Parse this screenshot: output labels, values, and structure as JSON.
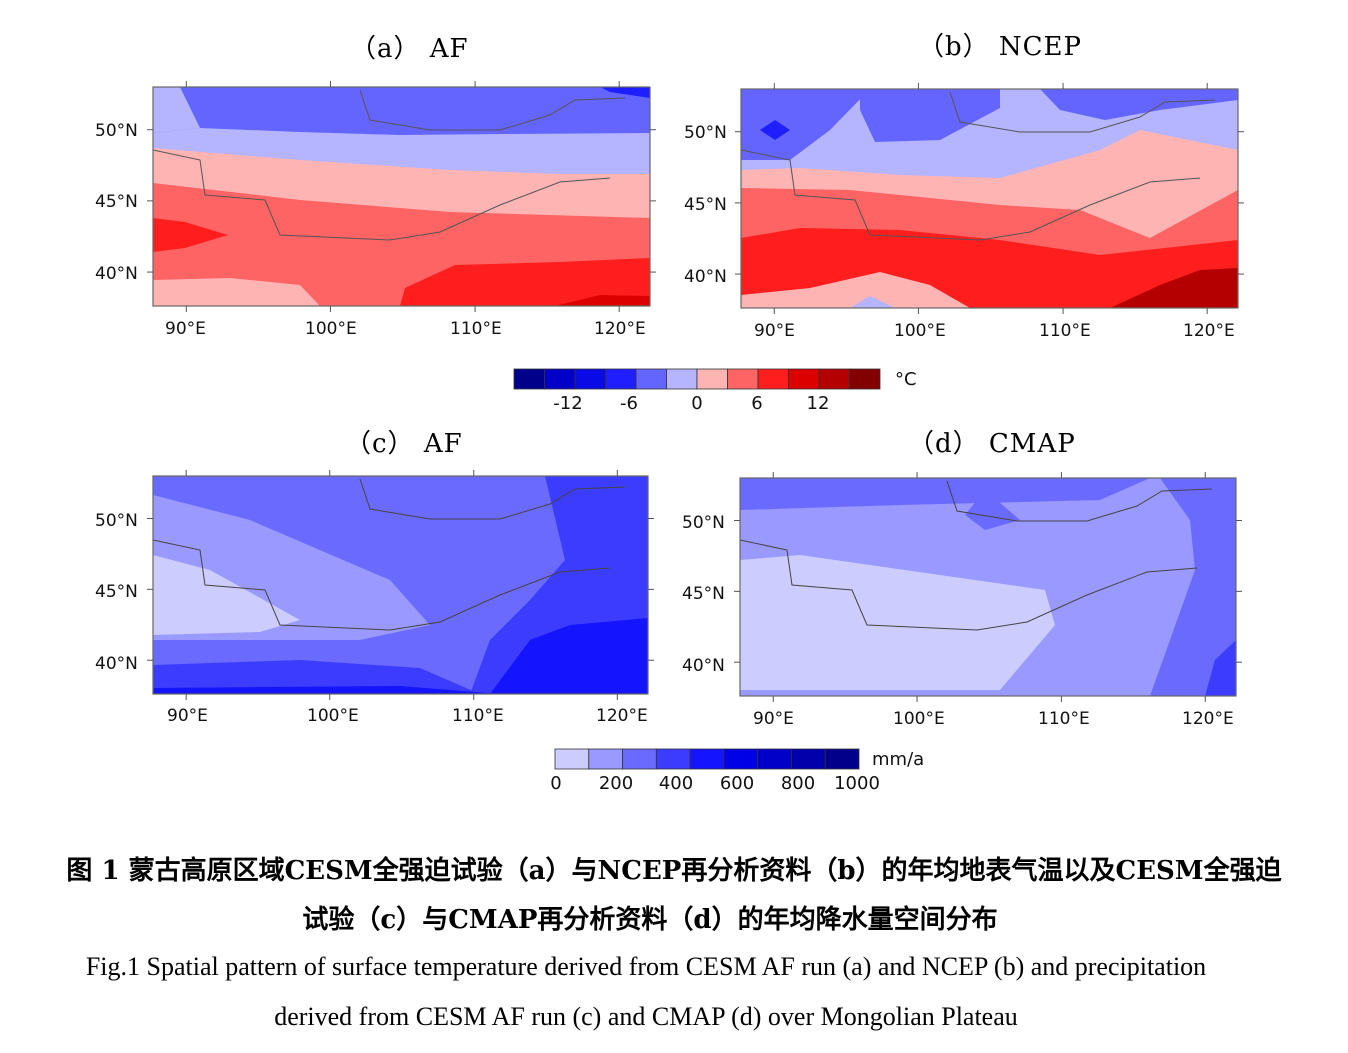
{
  "panels": [
    {
      "id": "a",
      "title": "（a） AF"
    },
    {
      "id": "b",
      "title": "（b） NCEP"
    },
    {
      "id": "c",
      "title": "（c） AF"
    },
    {
      "id": "d",
      "title": "（d） CMAP"
    }
  ],
  "axis": {
    "x_ticks": [
      "90°E",
      "100°E",
      "110°E",
      "120°E"
    ],
    "y_ticks": [
      "50°N",
      "45°N",
      "40°N"
    ]
  },
  "colorbars": {
    "temperature": {
      "unit": "°C",
      "labels": [
        "-12",
        "-6",
        "0",
        "6",
        "12"
      ],
      "colors": [
        "#00008b",
        "#0000c8",
        "#0a0ae6",
        "#1e1eff",
        "#6464ff",
        "#b4b4ff",
        "#ffb4b4",
        "#ff6464",
        "#ff1e1e",
        "#dc0000",
        "#b40000",
        "#820000"
      ]
    },
    "precipitation": {
      "unit": "mm/a",
      "labels": [
        "0",
        "200",
        "400",
        "600",
        "800",
        "1000"
      ],
      "colors": [
        "#ccccff",
        "#9999ff",
        "#6a6aff",
        "#3c3cff",
        "#1414ff",
        "#0000e6",
        "#0000c8",
        "#0000aa",
        "#00008b"
      ]
    }
  },
  "chart_data": [
    {
      "type": "heatmap",
      "title": "（a） AF",
      "variable": "surface temperature",
      "unit": "°C",
      "x_range": [
        "88°E",
        "122°E"
      ],
      "y_range": [
        "38°N",
        "53°N"
      ],
      "bands_north_to_south": [
        "-6",
        "-3",
        "0",
        "3",
        "6",
        "9"
      ]
    },
    {
      "type": "heatmap",
      "title": "（b） NCEP",
      "variable": "surface temperature",
      "unit": "°C",
      "x_range": [
        "88°E",
        "122°E"
      ],
      "y_range": [
        "38°N",
        "53°N"
      ],
      "bands_north_to_south": [
        "-6",
        "-3",
        "3",
        "6",
        "9",
        "12"
      ]
    },
    {
      "type": "heatmap",
      "title": "（c） AF",
      "variable": "precipitation",
      "unit": "mm/a",
      "x_range": [
        "88°E",
        "122°E"
      ],
      "y_range": [
        "38°N",
        "53°N"
      ],
      "bands_north_to_south": [
        "200-300",
        "100-200",
        "0-100",
        "200-300",
        "300-400",
        "400-500"
      ]
    },
    {
      "type": "heatmap",
      "title": "（d） CMAP",
      "variable": "precipitation",
      "unit": "mm/a",
      "x_range": [
        "88°E",
        "122°E"
      ],
      "y_range": [
        "38°N",
        "53°N"
      ],
      "bands_north_to_south": [
        "100-200",
        "0-100",
        "200-300",
        "300-400"
      ]
    }
  ],
  "caption": {
    "cn_line1": "图 1 蒙古高原区域CESM全强迫试验（a）与NCEP再分析资料（b）的年均地表气温以及CESM全强迫",
    "cn_line2": "试验（c）与CMAP再分析资料（d）的年均降水量空间分布",
    "en_line1": "Fig.1 Spatial pattern of surface temperature derived from CESM AF run (a) and NCEP (b) and precipitation",
    "en_line2": "derived from CESM AF run (c) and CMAP (d) over Mongolian Plateau"
  }
}
